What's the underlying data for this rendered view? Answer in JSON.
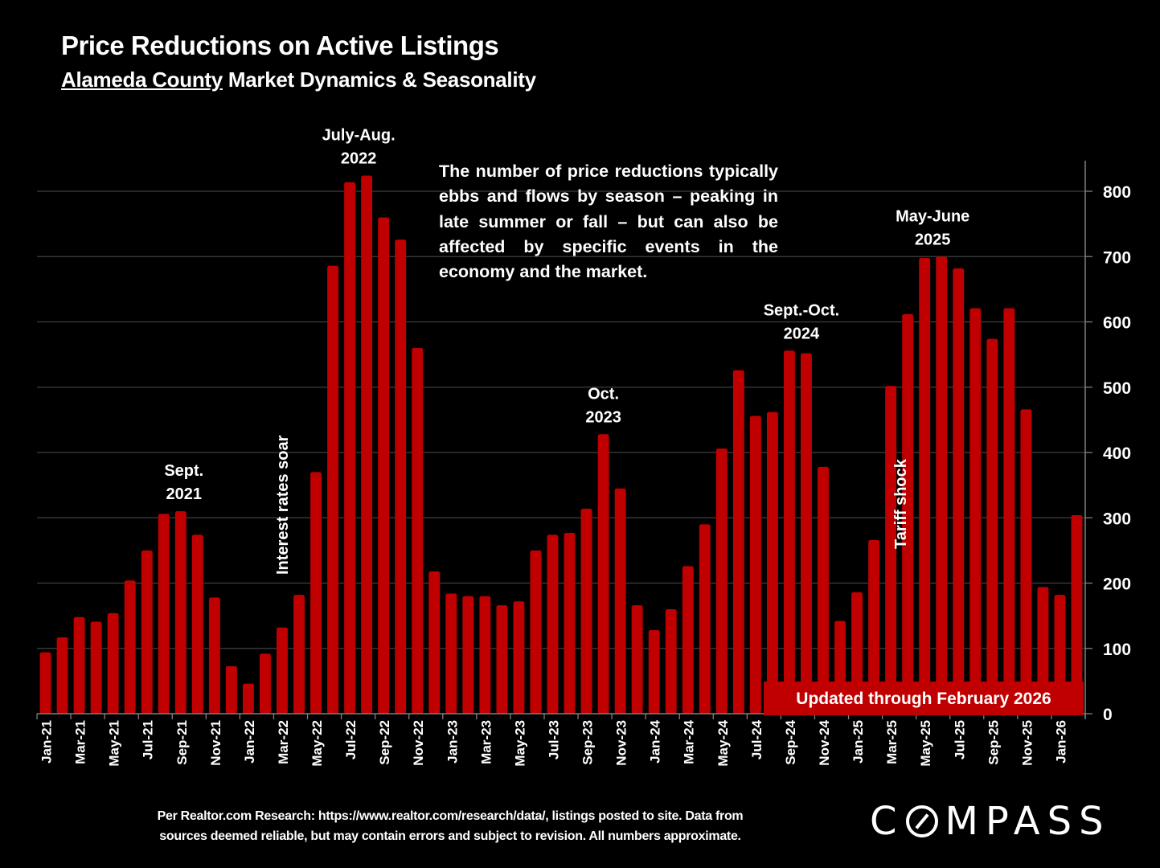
{
  "header": {
    "title": "Price Reductions on Active Listings",
    "subtitle_underlined": "Alameda County",
    "subtitle_rest": " Market Dynamics & Seasonality"
  },
  "description": "The number of price reductions typically ebbs and flows by season – peaking in late summer or fall – but can also be affected by specific events in the economy and the market.",
  "updated_banner": "Updated through February 2026",
  "footnote": {
    "line1": "Per Realtor.com Research:  https://www.realtor.com/research/data/, listings posted to site. Data from",
    "line2": "sources deemed reliable, but may contain errors and subject to revision. All numbers approximate."
  },
  "logo": {
    "before": "C",
    "after": "MPASS",
    "name": "COMPASS"
  },
  "colors": {
    "bar": "#c00000",
    "background": "#000000",
    "grid": "#404040",
    "text": "#ffffff"
  },
  "chart_data": {
    "type": "bar",
    "title": "Price Reductions on Active Listings",
    "subtitle": "Alameda County Market Dynamics & Seasonality",
    "xlabel": "",
    "ylabel": "",
    "ylim": [
      0,
      850
    ],
    "yticks": [
      0,
      100,
      200,
      300,
      400,
      500,
      600,
      700,
      800
    ],
    "y_axis_side": "right",
    "grid": true,
    "categories": [
      "Jan-21",
      "Feb-21",
      "Mar-21",
      "Apr-21",
      "May-21",
      "Jun-21",
      "Jul-21",
      "Aug-21",
      "Sep-21",
      "Oct-21",
      "Nov-21",
      "Dec-21",
      "Jan-22",
      "Feb-22",
      "Mar-22",
      "Apr-22",
      "May-22",
      "Jun-22",
      "Jul-22",
      "Aug-22",
      "Sep-22",
      "Oct-22",
      "Nov-22",
      "Dec-22",
      "Jan-23",
      "Feb-23",
      "Mar-23",
      "Apr-23",
      "May-23",
      "Jun-23",
      "Jul-23",
      "Aug-23",
      "Sep-23",
      "Oct-23",
      "Nov-23",
      "Dec-23",
      "Jan-24",
      "Feb-24",
      "Mar-24",
      "Apr-24",
      "May-24",
      "Jun-24",
      "Jul-24",
      "Aug-24",
      "Sep-24",
      "Oct-24",
      "Nov-24",
      "Dec-24",
      "Jan-25",
      "Feb-25",
      "Mar-25",
      "Apr-25",
      "May-25",
      "Jun-25",
      "Jul-25",
      "Aug-25",
      "Sep-25",
      "Oct-25",
      "Nov-25",
      "Dec-25",
      "Jan-26",
      "Feb-26"
    ],
    "tick_labels_shown": [
      "Jan-21",
      "Mar-21",
      "May-21",
      "Jul-21",
      "Sep-21",
      "Nov-21",
      "Jan-22",
      "Mar-22",
      "May-22",
      "Jul-22",
      "Sep-22",
      "Nov-22",
      "Jan-23",
      "Mar-23",
      "May-23",
      "Jul-23",
      "Sep-23",
      "Nov-23",
      "Jan-24",
      "Mar-24",
      "May-24",
      "Jul-24",
      "Sep-24",
      "Nov-24",
      "Jan-25",
      "Mar-25",
      "May-25",
      "Jul-25",
      "Sep-25",
      "Nov-25",
      "Jan-26"
    ],
    "values": [
      94,
      117,
      148,
      141,
      154,
      204,
      250,
      306,
      310,
      274,
      178,
      73,
      46,
      92,
      132,
      182,
      370,
      686,
      814,
      824,
      760,
      726,
      560,
      218,
      184,
      180,
      180,
      166,
      172,
      250,
      274,
      277,
      314,
      428,
      345,
      166,
      128,
      160,
      226,
      290,
      406,
      526,
      456,
      462,
      556,
      552,
      378,
      142,
      186,
      266,
      502,
      612,
      698,
      700,
      682,
      621,
      574,
      621,
      466,
      194,
      182,
      304
    ],
    "annotations": [
      {
        "text_line1": "Sept.",
        "text_line2": "2021",
        "at": "Sep-21",
        "value": 310
      },
      {
        "text_line1": "July-Aug.",
        "text_line2": "2022",
        "at": "Aug-22",
        "value": 824
      },
      {
        "text_line1": "Oct.",
        "text_line2": "2023",
        "at": "Oct-23",
        "value": 428
      },
      {
        "text_line1": "Sept.-Oct.",
        "text_line2": "2024",
        "at": "Sep-24",
        "value": 556
      },
      {
        "text_line1": "May-June",
        "text_line2": "2025",
        "at": "May-25",
        "value": 700
      }
    ],
    "vertical_annotations": [
      {
        "text": "Interest rates soar",
        "at": "Apr-22"
      },
      {
        "text": "Tariff shock",
        "at": "Apr-25"
      }
    ]
  }
}
